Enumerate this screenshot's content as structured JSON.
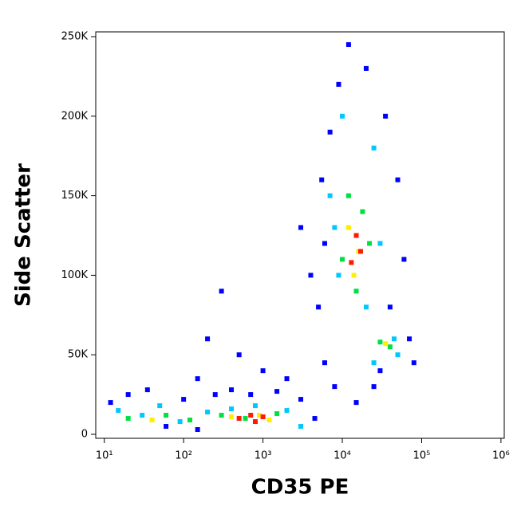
{
  "chart_data": {
    "type": "scatter",
    "x_label": "CD35 PE",
    "y_label": "Side Scatter",
    "xscale": "log",
    "xlim": [
      7.8,
      1100000
    ],
    "ylim": [
      -2500,
      253000
    ],
    "xticks": [
      {
        "value": 10,
        "label": "10¹"
      },
      {
        "value": 100,
        "label": "10²"
      },
      {
        "value": 1000,
        "label": "10³"
      },
      {
        "value": 10000,
        "label": "10⁴"
      },
      {
        "value": 100000,
        "label": "10⁵"
      },
      {
        "value": 1000000,
        "label": "10⁶"
      }
    ],
    "yticks": [
      0,
      {
        "value": 50000,
        "label": "50K"
      },
      {
        "value": 100000,
        "label": "100K"
      },
      {
        "value": 150000,
        "label": "150K"
      },
      {
        "value": 200000,
        "label": "200K"
      },
      {
        "value": 250000,
        "label": "250K"
      }
    ],
    "series": [
      {
        "color": "#0000ff",
        "x": [
          12,
          20,
          35,
          60,
          100,
          150,
          250,
          400,
          700,
          1500,
          3000,
          4500,
          5000,
          6000,
          5500,
          7000,
          9000,
          12000,
          20000,
          35000,
          50000,
          60000,
          40000,
          30000,
          25000,
          70000,
          80000,
          15000,
          8000,
          6000,
          200,
          500,
          1000,
          2000,
          3000,
          4000,
          300,
          150
        ],
        "values": [
          20000,
          25000,
          28000,
          5000,
          22000,
          3000,
          25000,
          28000,
          25000,
          27000,
          22000,
          10000,
          80000,
          120000,
          160000,
          190000,
          220000,
          245000,
          230000,
          200000,
          160000,
          110000,
          80000,
          40000,
          30000,
          60000,
          45000,
          20000,
          30000,
          45000,
          60000,
          50000,
          40000,
          35000,
          130000,
          100000,
          90000,
          35000
        ]
      },
      {
        "color": "#00c8ff",
        "x": [
          15,
          30,
          50,
          90,
          200,
          400,
          800,
          2000,
          3000,
          7000,
          9000,
          25000,
          30000,
          10000,
          20000,
          8000,
          45000,
          50000,
          25000
        ],
        "values": [
          15000,
          12000,
          18000,
          8000,
          14000,
          16000,
          18000,
          15000,
          5000,
          150000,
          100000,
          180000,
          120000,
          200000,
          80000,
          130000,
          60000,
          50000,
          45000
        ]
      },
      {
        "color": "#00e040",
        "x": [
          20,
          60,
          120,
          300,
          600,
          1500,
          12000,
          18000,
          10000,
          15000,
          22000,
          30000,
          40000
        ],
        "values": [
          10000,
          12000,
          9000,
          12000,
          10000,
          13000,
          150000,
          140000,
          110000,
          90000,
          120000,
          58000,
          55000
        ]
      },
      {
        "color": "#ffee00",
        "x": [
          40,
          400,
          900,
          1200,
          12000,
          16000,
          14000,
          35000
        ],
        "values": [
          9000,
          11000,
          12000,
          9000,
          130000,
          115000,
          100000,
          57000
        ]
      },
      {
        "color": "#ff1a00",
        "x": [
          500,
          800,
          1000,
          700,
          15000,
          17000,
          13000
        ],
        "values": [
          10000,
          8000,
          11000,
          12000,
          125000,
          115000,
          108000
        ]
      }
    ]
  }
}
